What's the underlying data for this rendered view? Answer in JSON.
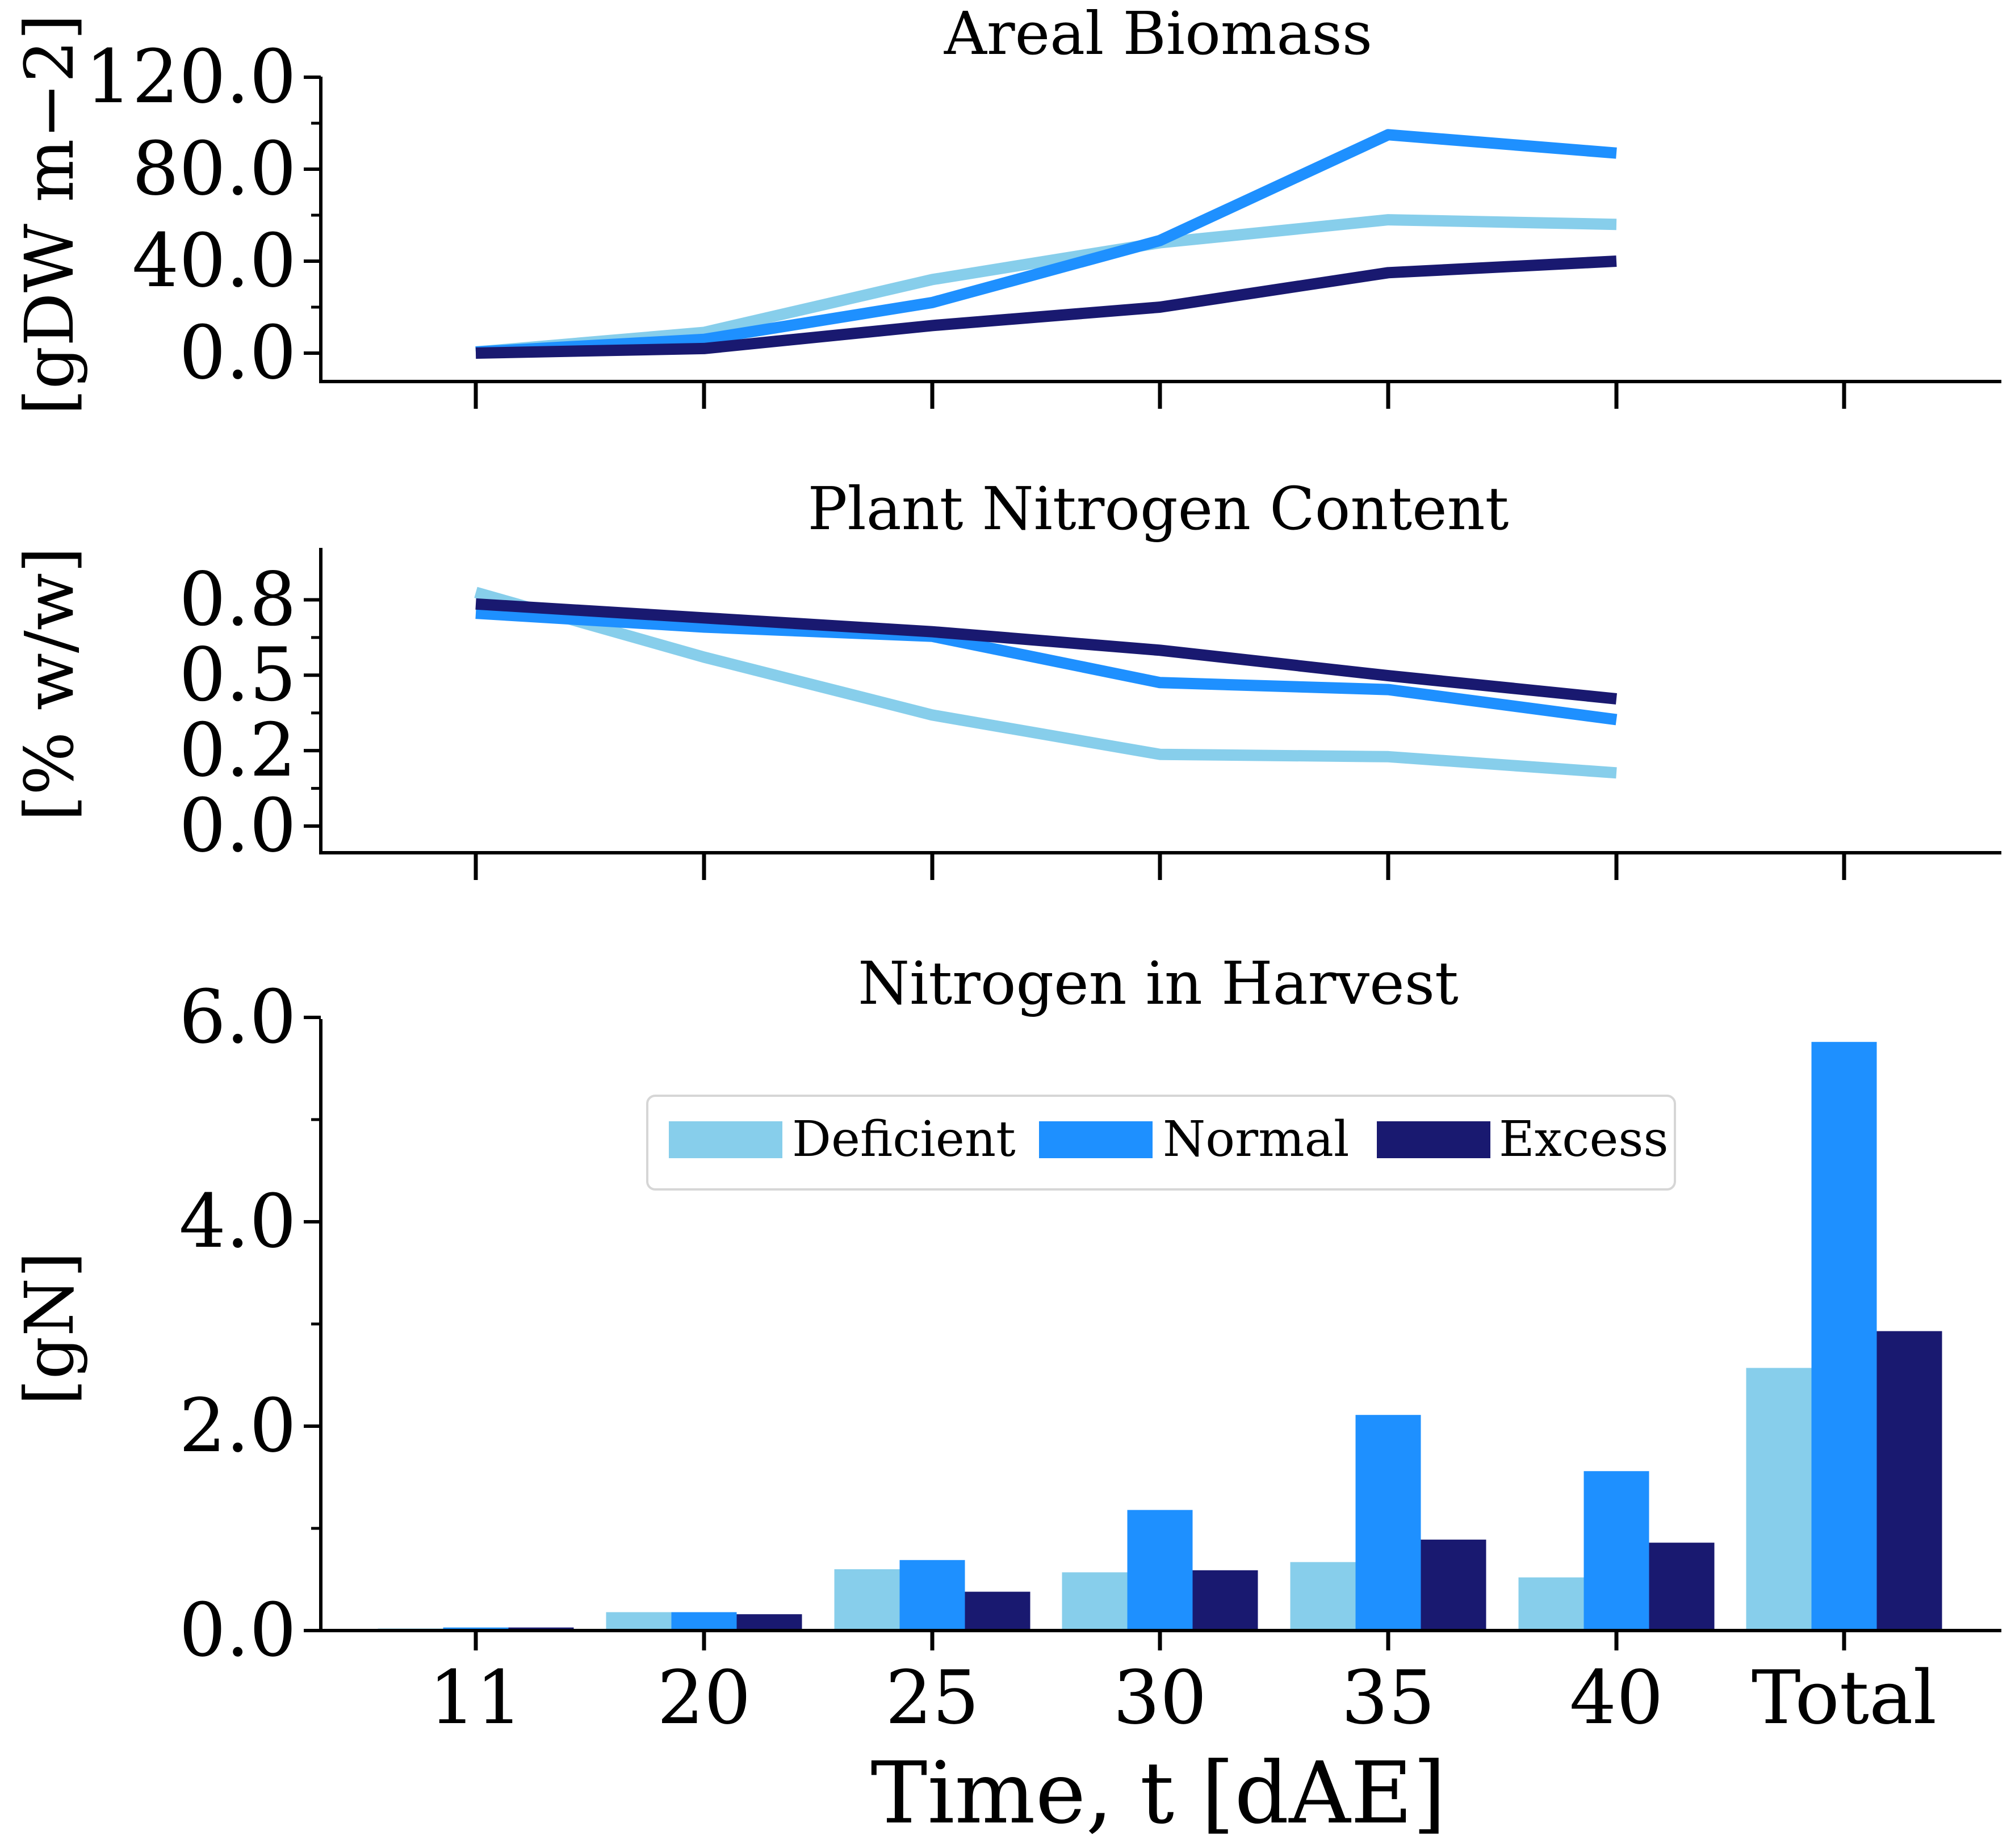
{
  "colors": {
    "Deficient": "#87ceeb",
    "Normal": "#1e90ff",
    "Excess": "#191970"
  },
  "chart_data": [
    {
      "type": "line",
      "title": "Areal Biomass",
      "ylabel": "[gDW m−2]",
      "x": [
        "11",
        "20",
        "25",
        "30",
        "35",
        "40"
      ],
      "ylim": [
        -12,
        120
      ],
      "yticks": [
        "0.0",
        "40.0",
        "80.0",
        "120.0"
      ],
      "series": [
        {
          "name": "Deficient",
          "values": [
            0.5,
            9,
            32,
            48,
            58,
            56
          ]
        },
        {
          "name": "Normal",
          "values": [
            0.5,
            6,
            22,
            49,
            95,
            87
          ]
        },
        {
          "name": "Excess",
          "values": [
            0,
            2,
            12,
            20,
            35,
            40
          ]
        }
      ]
    },
    {
      "type": "line",
      "title": "Plant Nitrogen Content",
      "ylabel": "[% w/w]",
      "x": [
        "11",
        "20",
        "25",
        "30",
        "35",
        "40"
      ],
      "ylim": [
        -0.06,
        0.6
      ],
      "yticks": [
        "0.0",
        "0.2",
        "0.5",
        "0.8"
      ],
      "series": [
        {
          "name": "Deficient",
          "values": [
            0.505,
            0.365,
            0.24,
            0.155,
            0.15,
            0.115
          ]
        },
        {
          "name": "Normal",
          "values": [
            0.46,
            0.43,
            0.41,
            0.31,
            0.295,
            0.23
          ]
        },
        {
          "name": "Excess",
          "values": [
            0.48,
            0.45,
            0.42,
            0.38,
            0.325,
            0.275
          ]
        }
      ]
    },
    {
      "type": "bar",
      "title": "Nitrogen in Harvest",
      "ylabel": "[gN]",
      "xlabel": "Time, t [dAE]",
      "categories": [
        "11",
        "20",
        "25",
        "30",
        "35",
        "40",
        "Total"
      ],
      "ylim": [
        0,
        6
      ],
      "yticks": [
        "0.0",
        "2.0",
        "4.0",
        "6.0"
      ],
      "legend": "upper-center",
      "series": [
        {
          "name": "Deficient",
          "values": [
            0.02,
            0.18,
            0.6,
            0.57,
            0.67,
            0.52,
            2.57
          ]
        },
        {
          "name": "Normal",
          "values": [
            0.03,
            0.18,
            0.69,
            1.18,
            2.11,
            1.56,
            5.76
          ]
        },
        {
          "name": "Excess",
          "values": [
            0.03,
            0.16,
            0.38,
            0.59,
            0.89,
            0.86,
            2.93
          ]
        }
      ]
    }
  ]
}
